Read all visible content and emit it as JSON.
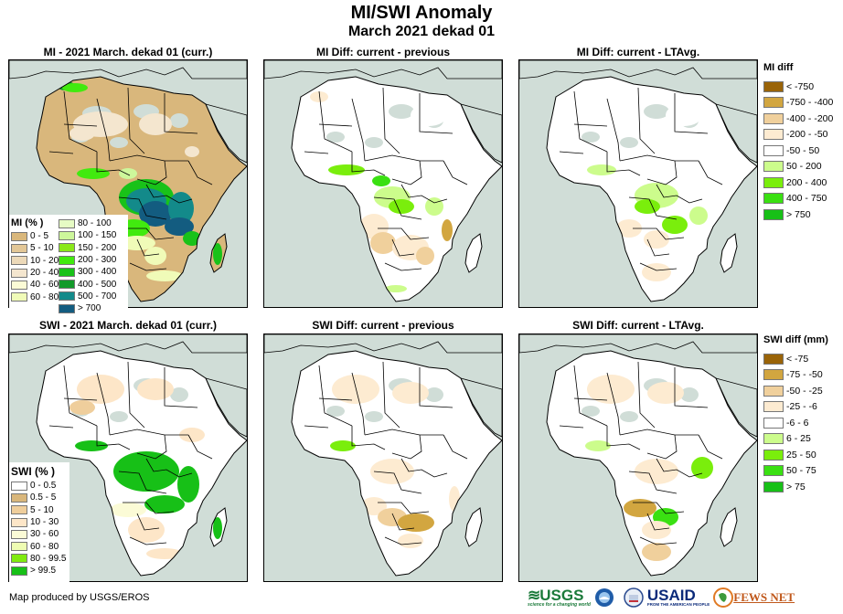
{
  "header": {
    "title": "MI/SWI Anomaly",
    "subtitle": "March 2021 dekad 01"
  },
  "panels": [
    {
      "title": "MI - 2021 March. dekad 01 (curr.)",
      "variable": "MI",
      "kind": "current"
    },
    {
      "title": "MI Diff: current - previous",
      "variable": "MI",
      "kind": "diff-previous"
    },
    {
      "title": "MI Diff: current - LTAvg.",
      "variable": "MI",
      "kind": "diff-ltavg"
    },
    {
      "title": "SWI - 2021 March. dekad 01 (curr.)",
      "variable": "SWI",
      "kind": "current"
    },
    {
      "title": "SWI Diff: current - previous",
      "variable": "SWI",
      "kind": "diff-previous"
    },
    {
      "title": "SWI Diff: current - LTAvg.",
      "variable": "SWI",
      "kind": "diff-ltavg"
    }
  ],
  "legends": {
    "mi_percent": {
      "title": "MI (% )",
      "items": [
        {
          "label": "0 - 5",
          "color": "#d9b77c"
        },
        {
          "label": "5 - 10",
          "color": "#e3c797"
        },
        {
          "label": "10 - 20",
          "color": "#ecd9b9"
        },
        {
          "label": "20 - 40",
          "color": "#f4e6cf"
        },
        {
          "label": "40 - 60",
          "color": "#fbfbd6"
        },
        {
          "label": "60 - 80",
          "color": "#f0fbb8"
        },
        {
          "label": "80 - 100",
          "color": "#e6fbc4"
        },
        {
          "label": "100 - 150",
          "color": "#cdf79b"
        },
        {
          "label": "150 - 200",
          "color": "#8ae81a"
        },
        {
          "label": "200 - 300",
          "color": "#41ea0f"
        },
        {
          "label": "300 - 400",
          "color": "#19c219"
        },
        {
          "label": "400 - 500",
          "color": "#129a2a"
        },
        {
          "label": "500 - 700",
          "color": "#138a8a"
        },
        {
          "label": "> 700",
          "color": "#135c80"
        }
      ]
    },
    "mi_diff": {
      "title": "MI diff",
      "items": [
        {
          "label": "< -750",
          "color": "#9a6408"
        },
        {
          "label": "-750 - -400",
          "color": "#d2a640"
        },
        {
          "label": "-400 - -200",
          "color": "#f0d09c"
        },
        {
          "label": "-200 - -50",
          "color": "#fdebd1"
        },
        {
          "label": "-50 - 50",
          "color": "#ffffff"
        },
        {
          "label": "50 - 200",
          "color": "#ccfc8c"
        },
        {
          "label": "200 - 400",
          "color": "#7aee0c"
        },
        {
          "label": "400 - 750",
          "color": "#3ae012"
        },
        {
          "label": "> 750",
          "color": "#17c017"
        }
      ]
    },
    "swi_percent": {
      "title": "SWI (% )",
      "items": [
        {
          "label": "0 - 0.5",
          "color": "#ffffff"
        },
        {
          "label": "0.5 - 5",
          "color": "#d9b77c"
        },
        {
          "label": "5 - 10",
          "color": "#efce9c"
        },
        {
          "label": "10 - 30",
          "color": "#fde6c8"
        },
        {
          "label": "30 - 60",
          "color": "#fbfbd6"
        },
        {
          "label": "60 - 80",
          "color": "#eefcb2"
        },
        {
          "label": "80 - 99.5",
          "color": "#80ea10"
        },
        {
          "label": "> 99.5",
          "color": "#17c017"
        }
      ]
    },
    "swi_diff": {
      "title": "SWI diff (mm)",
      "items": [
        {
          "label": "< -75",
          "color": "#9a6408"
        },
        {
          "label": "-75 - -50",
          "color": "#d2a640"
        },
        {
          "label": "-50 - -25",
          "color": "#f0d09c"
        },
        {
          "label": "-25 - -6",
          "color": "#fdebd1"
        },
        {
          "label": "-6 - 6",
          "color": "#ffffff"
        },
        {
          "label": "6 - 25",
          "color": "#ccfc8c"
        },
        {
          "label": "25 - 50",
          "color": "#7aee0c"
        },
        {
          "label": "50 - 75",
          "color": "#3ae012"
        },
        {
          "label": "> 75",
          "color": "#17c017"
        }
      ]
    }
  },
  "colors": {
    "ocean": "#d0ddd7",
    "nodata": "#d0ddd7",
    "border": "#000000"
  },
  "footer": {
    "credit": "Map produced by USGS/EROS",
    "logos": [
      "USGS",
      "NOAA",
      "USAID",
      "FEWS NET"
    ],
    "usgs_tagline": "science for a changing world",
    "usaid_tagline": "FROM THE AMERICAN PEOPLE"
  },
  "chart_data": {
    "type": "heatmap",
    "title": "MI/SWI Anomaly — March 2021 dekad 01",
    "region": "Africa",
    "maps": [
      {
        "name": "MI - 2021 March. dekad 01 (curr.)",
        "legend": "mi_percent",
        "summary": "Sahara and Horn mostly 0-5%; Congo basin, East Africa and Zambia/Malawi 400->700%; Madagascar east coast 200-500%"
      },
      {
        "name": "MI Diff: current - previous",
        "legend": "mi_diff",
        "summary": "Mostly -50 to 50; gains along Gulf of Guinea and Cameroon; losses across Angola, Botswana, Zimbabwe, Tanzania coast"
      },
      {
        "name": "MI Diff: current - LTAvg.",
        "legend": "mi_diff",
        "summary": "Mostly -50 to 50; positive anomalies in Congo basin and southeast; negative in Angola/Zambia and southern Africa"
      },
      {
        "name": "SWI - 2021 March. dekad 01 (curr.)",
        "legend": "swi_percent",
        "summary": "Central Africa and Zambia/Mozambique >99.5%; Sahara mostly 0-0.5% with patches 0.5-10%"
      },
      {
        "name": "SWI Diff: current - previous",
        "legend": "swi_diff",
        "summary": "Mostly -6 to 6; drying across Angola, Zambia, Botswana, Zimbabwe; small wet patches in West Africa"
      },
      {
        "name": "SWI Diff: current - LTAvg.",
        "legend": "swi_diff",
        "summary": "Mostly -6 to 6; strong negative anomaly in Zambia/Angola and southern Africa; positive in Zimbabwe and East Africa"
      }
    ]
  }
}
